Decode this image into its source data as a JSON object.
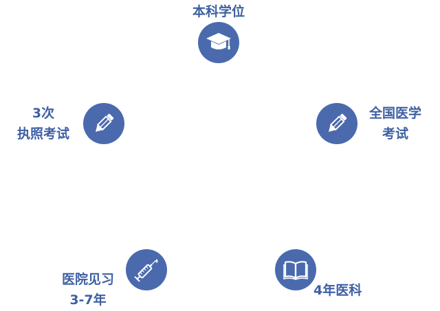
{
  "colors": {
    "circle": "#4a6aad",
    "label": "#3e5fa3",
    "icon": "#ffffff"
  },
  "steps": [
    {
      "icon": "graduation-cap-icon",
      "lines": [
        "本科学位"
      ]
    },
    {
      "icon": "pencil-icon",
      "lines": [
        "全国医学",
        "考试"
      ]
    },
    {
      "icon": "open-book-icon",
      "lines": [
        "4年医科"
      ]
    },
    {
      "icon": "syringe-icon",
      "lines": [
        "医院见习",
        "3-7年"
      ]
    },
    {
      "icon": "pencil-icon",
      "lines": [
        "3次",
        "执照考试"
      ]
    }
  ]
}
